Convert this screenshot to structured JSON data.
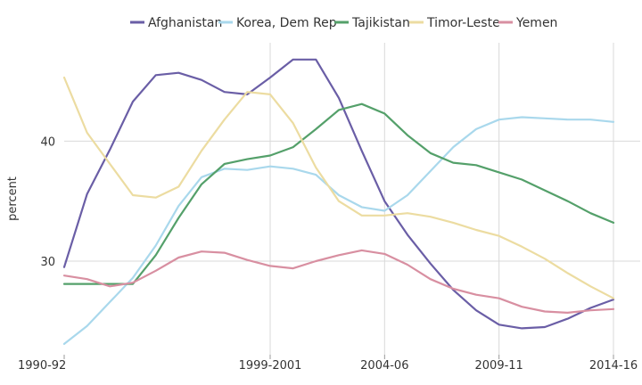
{
  "chart_data": {
    "type": "line",
    "title": "",
    "xlabel": "",
    "ylabel": "percent",
    "x": [
      "1990-92",
      "1991-93",
      "1992-94",
      "1993-95",
      "1994-96",
      "1995-97",
      "1996-98",
      "1997-99",
      "1998-2000",
      "1999-2001",
      "2000-02",
      "2001-03",
      "2002-04",
      "2003-05",
      "2004-06",
      "2005-07",
      "2006-08",
      "2007-09",
      "2008-10",
      "2009-11",
      "2010-12",
      "2011-13",
      "2012-14",
      "2013-15",
      "2014-16"
    ],
    "x_tick_labels": [
      "1990-92",
      "1999-2001",
      "2004-06",
      "2009-11",
      "2014-16"
    ],
    "y_ticks": [
      30,
      40
    ],
    "ylim": [
      22.2,
      48.2
    ],
    "grid": true,
    "legend_position": "top",
    "series": [
      {
        "name": "Afghanistan",
        "color": "#6a5ea6",
        "values": [
          29.5,
          35.6,
          39.3,
          43.3,
          45.5,
          45.7,
          45.1,
          44.1,
          43.9,
          45.3,
          46.8,
          46.8,
          43.6,
          39.2,
          35.0,
          32.2,
          29.8,
          27.6,
          25.9,
          24.7,
          24.4,
          24.5,
          25.2,
          26.1,
          26.8
        ]
      },
      {
        "name": "Korea, Dem Rep",
        "color": "#a9d8ec",
        "values": [
          23.1,
          24.6,
          26.6,
          28.6,
          31.3,
          34.6,
          37.0,
          37.7,
          37.6,
          37.9,
          37.7,
          37.2,
          35.5,
          34.5,
          34.2,
          35.5,
          37.5,
          39.5,
          41.0,
          41.8,
          42.0,
          41.9,
          41.8,
          41.8,
          41.6
        ]
      },
      {
        "name": "Tajikistan",
        "color": "#54a06a",
        "values": [
          28.1,
          28.1,
          28.1,
          28.1,
          30.5,
          33.6,
          36.4,
          38.1,
          38.5,
          38.8,
          39.5,
          41.0,
          42.6,
          43.1,
          42.3,
          40.5,
          39.0,
          38.2,
          38.0,
          37.4,
          36.8,
          35.9,
          35.0,
          34.0,
          33.2
        ]
      },
      {
        "name": "Timor-Leste",
        "color": "#ecdca1",
        "values": [
          45.3,
          40.7,
          38.1,
          35.5,
          35.3,
          36.2,
          39.2,
          41.8,
          44.1,
          43.9,
          41.5,
          37.8,
          35.0,
          33.8,
          33.8,
          34.0,
          33.7,
          33.2,
          32.6,
          32.1,
          31.2,
          30.2,
          29.0,
          27.9,
          26.9
        ]
      },
      {
        "name": "Yemen",
        "color": "#d88fa1",
        "values": [
          28.8,
          28.5,
          27.9,
          28.2,
          29.2,
          30.3,
          30.8,
          30.7,
          30.1,
          29.6,
          29.4,
          30.0,
          30.5,
          30.9,
          30.6,
          29.7,
          28.5,
          27.7,
          27.2,
          26.9,
          26.2,
          25.8,
          25.7,
          25.9,
          26.0
        ]
      }
    ]
  }
}
